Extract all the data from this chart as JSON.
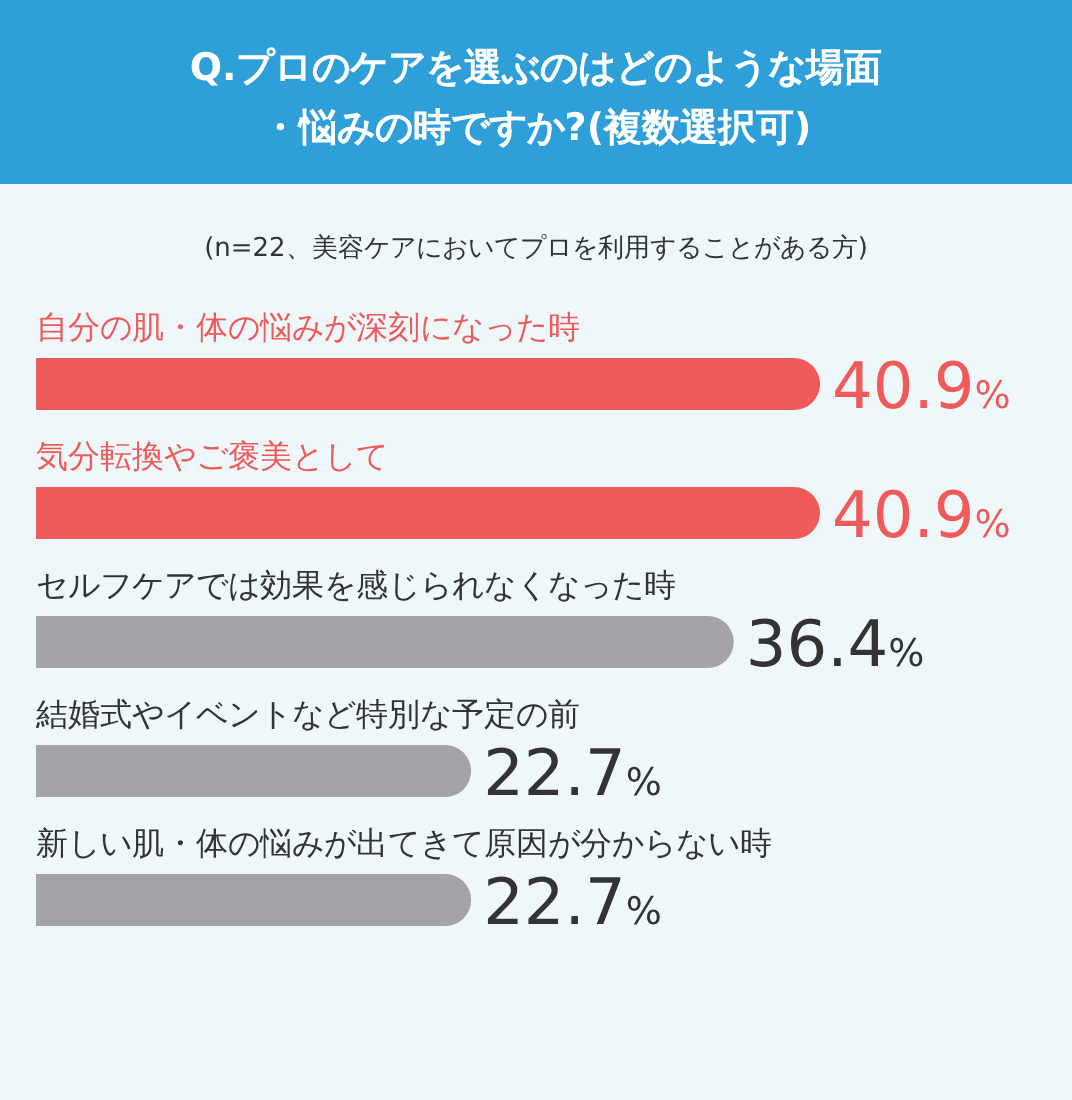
{
  "chart_data": {
    "type": "bar",
    "orientation": "horizontal",
    "title": "Q.プロのケアを選ぶのはどのような場面・悩みの時ですか?(複数選択可)",
    "subtitle": "(n=22、美容ケアにおいてプロを利用することがある方)",
    "categories": [
      "自分の肌・体の悩みが深刻になった時",
      "気分転換やご褒美として",
      "セルフケアでは効果を感じられなくなった時",
      "結婚式やイベントなど特別な予定の前",
      "新しい肌・体の悩みが出てきて原因が分からない時"
    ],
    "values": [
      40.9,
      40.9,
      36.4,
      22.7,
      22.7
    ],
    "colors": [
      "#f05a5a",
      "#f05a5a",
      "#a3a3a8",
      "#a3a3a8",
      "#a3a3a8"
    ],
    "value_labels": [
      "40.9%",
      "40.9%",
      "36.4%",
      "22.7%",
      "22.7%"
    ]
  }
}
